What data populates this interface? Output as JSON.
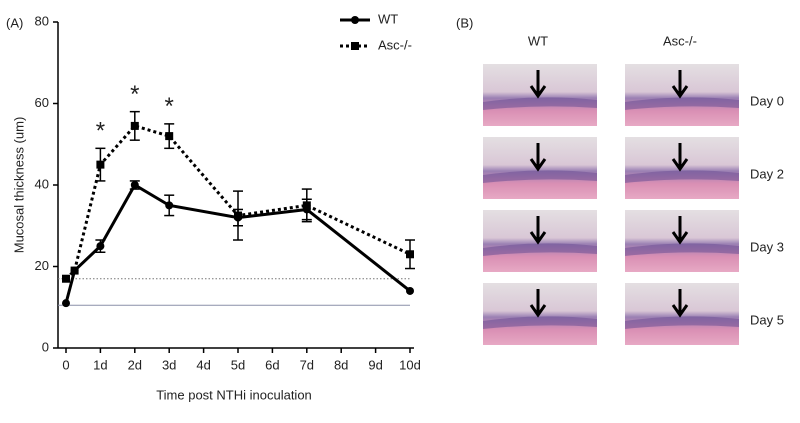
{
  "chart_data": {
    "type": "line",
    "panel_label": "(A)",
    "x_label": "Time post NTHi inoculation",
    "y_label": "Mucosal thickness (um)",
    "x": [
      0,
      0.25,
      1,
      2,
      3,
      5,
      7,
      10
    ],
    "series": [
      {
        "name": "WT",
        "color": "#000000",
        "style": "solid",
        "marker": "circle",
        "values": [
          11,
          19,
          25,
          40,
          35,
          32,
          34,
          14
        ],
        "errors": [
          0,
          0,
          1.5,
          1,
          2.5,
          2,
          2.5,
          0
        ]
      },
      {
        "name": "Asc-/-",
        "color": "#000000",
        "style": "dotted",
        "marker": "square",
        "values": [
          17,
          19,
          45,
          54.5,
          52,
          32.5,
          35,
          23
        ],
        "errors": [
          0,
          0,
          4,
          3.5,
          3,
          6,
          4,
          3.5
        ]
      }
    ],
    "reference_lines": [
      {
        "value": 10.5,
        "style": "solid"
      },
      {
        "value": 17,
        "style": "dotted"
      }
    ],
    "annotations": [
      {
        "text": "*",
        "x": 1
      },
      {
        "text": "*",
        "x": 2
      },
      {
        "text": "*",
        "x": 3
      }
    ],
    "xlim": [
      0,
      10
    ],
    "xticks": [
      0,
      {
        "value": 1,
        "label": "1d"
      },
      {
        "value": 2,
        "label": "2d"
      },
      {
        "value": 3,
        "label": "3d"
      },
      {
        "value": 4,
        "label": "4d"
      },
      {
        "value": 5,
        "label": "5d"
      },
      {
        "value": 6,
        "label": "6d"
      },
      {
        "value": 7,
        "label": "7d"
      },
      {
        "value": 8,
        "label": "8d"
      },
      {
        "value": 9,
        "label": "9d"
      },
      {
        "value": 10,
        "label": "10d"
      }
    ],
    "ylim": [
      0,
      80
    ],
    "yticks": [
      0,
      20,
      40,
      60,
      80
    ],
    "legend": "top-right"
  },
  "panel_b": {
    "label": "(B)",
    "columns": [
      "WT",
      "Asc-/-"
    ],
    "rows": [
      "Day 0",
      "Day 2",
      "Day 3",
      "Day 5"
    ]
  }
}
